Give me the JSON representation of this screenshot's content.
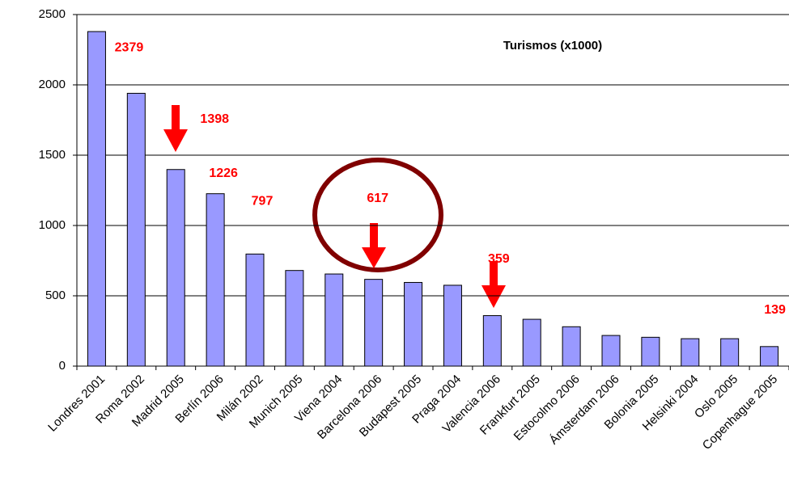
{
  "chart_data": {
    "type": "bar",
    "categories": [
      "Londres 2001",
      "Roma 2002",
      "Madrid 2005",
      "Berlín 2006",
      "Milán 2002",
      "Munich 2005",
      "Viena 2004",
      "Barcelona 2006",
      "Budapest 2005",
      "Praga 2004",
      "Valencia 2006",
      "Frankfurt 2005",
      "Estocolmo 2006",
      "Ámsterdam 2006",
      "Bolonia 2005",
      "Helsinki 2004",
      "Oslo 2005",
      "Copenhague 2005"
    ],
    "series": [
      {
        "name": "Turismos (x1000)",
        "color": "#9999ff",
        "values": [
          2379,
          1940,
          1398,
          1226,
          797,
          680,
          655,
          617,
          595,
          575,
          359,
          333,
          280,
          218,
          205,
          195,
          195,
          139
        ],
        "value_labels": [
          "2379",
          null,
          "1398",
          "1226",
          "797",
          null,
          null,
          "617",
          null,
          null,
          "359",
          null,
          null,
          null,
          null,
          null,
          null,
          "139"
        ],
        "label_color": "#ff0000"
      }
    ],
    "ylim": [
      0,
      2500
    ],
    "yticks": [
      0,
      500,
      1000,
      1500,
      2000,
      2500
    ],
    "grid": true
  }
}
